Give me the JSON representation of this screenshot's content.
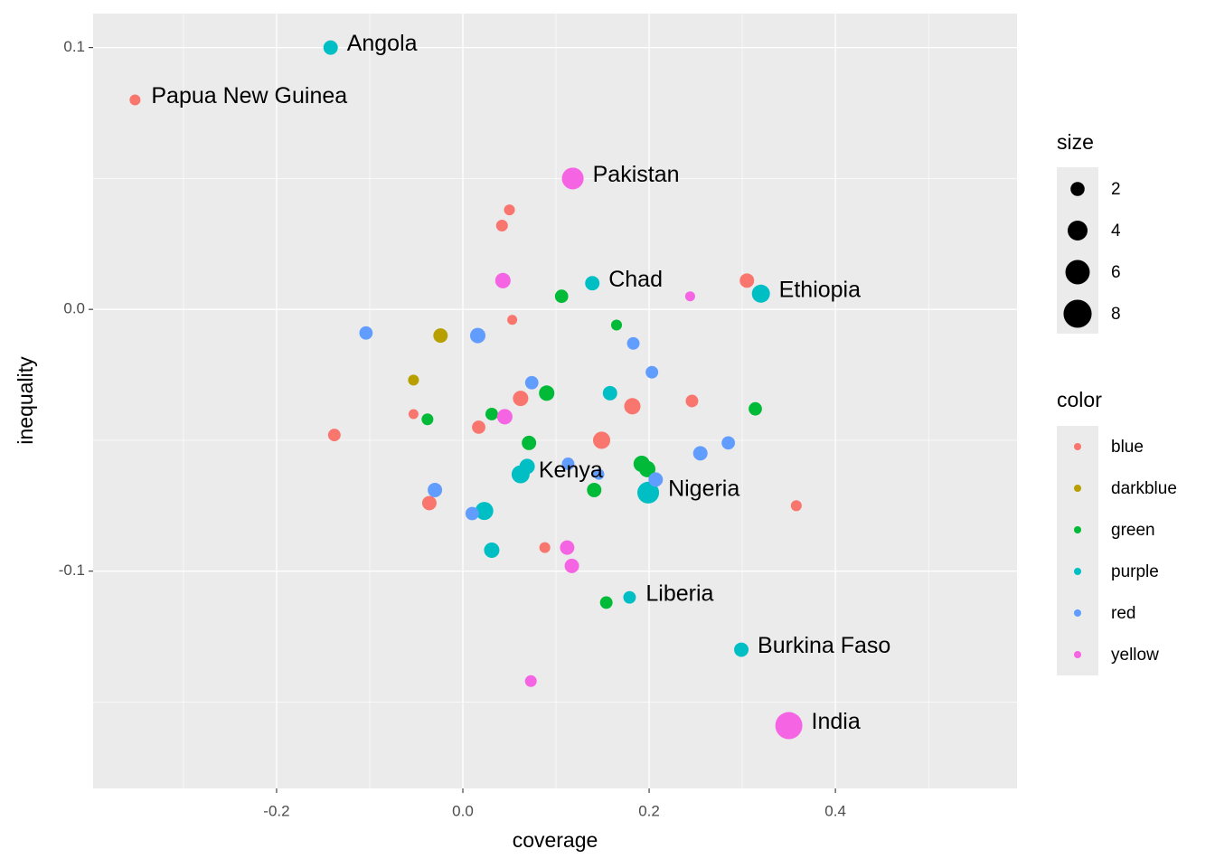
{
  "chart_data": {
    "type": "scatter",
    "x_label": "coverage",
    "y_label": "inequality",
    "xlim": [
      -0.397,
      0.595
    ],
    "ylim": [
      -0.183,
      0.113
    ],
    "xticks": [
      -0.2,
      {
        "value": 0,
        "label": "0.0"
      },
      0.2,
      0.4
    ],
    "yticks": [
      -0.1,
      {
        "value": 0,
        "label": "0.0"
      },
      0.1
    ],
    "x_minor_breaks": [
      -0.3,
      -0.1,
      0.1,
      0.3,
      0.5
    ],
    "y_minor_breaks": [
      -0.15,
      -0.05,
      0.05
    ],
    "grid": true,
    "size_legend": {
      "title": "size",
      "values": [
        2,
        4,
        6,
        8
      ]
    },
    "color_legend_title": "color",
    "series": [
      {
        "name": "blue",
        "color": "#F8766D",
        "x": [
          -0.352,
          0.05,
          0.042,
          0.305,
          0.053,
          -0.053,
          -0.138,
          0.017,
          0.062,
          0.182,
          0.246,
          0.149,
          -0.036,
          0.088,
          0.358
        ],
        "y": [
          0.08,
          0.038,
          0.032,
          0.011,
          -0.004,
          -0.04,
          -0.048,
          -0.045,
          -0.034,
          -0.037,
          -0.035,
          -0.05,
          -0.074,
          -0.091,
          -0.075
        ],
        "size": [
          1.2,
          1.2,
          1.4,
          2.1,
          1,
          1,
          1.6,
          1.8,
          2.4,
          2.7,
          1.6,
          3,
          2.1,
          1.2,
          1.2
        ],
        "labels": [
          "Papua New Guinea",
          null,
          null,
          null,
          null,
          null,
          null,
          null,
          null,
          null,
          null,
          null,
          null,
          null,
          null
        ]
      },
      {
        "name": "darkblue",
        "color": "#B79F00",
        "x": [
          -0.024,
          -0.053
        ],
        "y": [
          -0.01,
          -0.027
        ],
        "size": [
          2.1,
          1.2
        ],
        "labels": [
          null,
          null
        ]
      },
      {
        "name": "green",
        "color": "#00BA38",
        "x": [
          0.106,
          0.165,
          -0.038,
          0.031,
          0.09,
          0.071,
          0.314,
          0.192,
          0.198,
          0.141,
          0.154
        ],
        "y": [
          0.005,
          -0.006,
          -0.042,
          -0.04,
          -0.032,
          -0.051,
          -0.038,
          -0.059,
          -0.061,
          -0.069,
          -0.112
        ],
        "size": [
          1.8,
          1.2,
          1.4,
          1.6,
          2.4,
          2.1,
          1.8,
          2.7,
          2.7,
          2.1,
          1.6
        ],
        "labels": [
          null,
          null,
          null,
          null,
          null,
          null,
          null,
          null,
          null,
          null,
          null
        ]
      },
      {
        "name": "purple",
        "color": "#00BFC4",
        "x": [
          -0.142,
          0.139,
          0.32,
          0.158,
          0.069,
          0.062,
          0.023,
          0.031,
          0.199,
          0.179,
          0.299
        ],
        "y": [
          0.1,
          0.01,
          0.006,
          -0.032,
          -0.06,
          -0.063,
          -0.077,
          -0.092,
          -0.07,
          -0.11,
          -0.13
        ],
        "size": [
          2.1,
          2.1,
          3.3,
          2.1,
          2.4,
          3.3,
          3.3,
          2.4,
          4.8,
          1.6,
          2.1
        ],
        "labels": [
          "Angola",
          "Chad",
          "Ethiopia",
          null,
          null,
          "Kenya",
          null,
          null,
          "Nigeria",
          "Liberia",
          "Burkina Faso"
        ]
      },
      {
        "name": "red",
        "color": "#619CFF",
        "x": [
          -0.104,
          0.016,
          0.183,
          0.203,
          0.074,
          0.255,
          0.285,
          0.113,
          0.146,
          0.207,
          -0.03,
          0.01
        ],
        "y": [
          -0.009,
          -0.01,
          -0.013,
          -0.024,
          -0.028,
          -0.055,
          -0.051,
          -0.059,
          -0.063,
          -0.065,
          -0.069,
          -0.078
        ],
        "size": [
          1.8,
          2.4,
          1.6,
          1.6,
          1.8,
          2.1,
          1.8,
          1.6,
          1.2,
          2.1,
          2.1,
          1.8
        ],
        "labels": [
          null,
          null,
          null,
          null,
          null,
          null,
          null,
          null,
          null,
          null,
          null,
          null
        ]
      },
      {
        "name": "yellow",
        "color": "#F564E3",
        "x": [
          0.118,
          0.043,
          0.244,
          0.045,
          0.112,
          0.117,
          0.073,
          0.35
        ],
        "y": [
          0.05,
          0.011,
          0.005,
          -0.041,
          -0.091,
          -0.098,
          -0.142,
          -0.159
        ],
        "size": [
          4.8,
          2.4,
          1,
          2.4,
          2.1,
          2.1,
          1.4,
          7.4
        ],
        "labels": [
          "Pakistan",
          null,
          null,
          null,
          null,
          null,
          null,
          "India"
        ]
      }
    ]
  }
}
